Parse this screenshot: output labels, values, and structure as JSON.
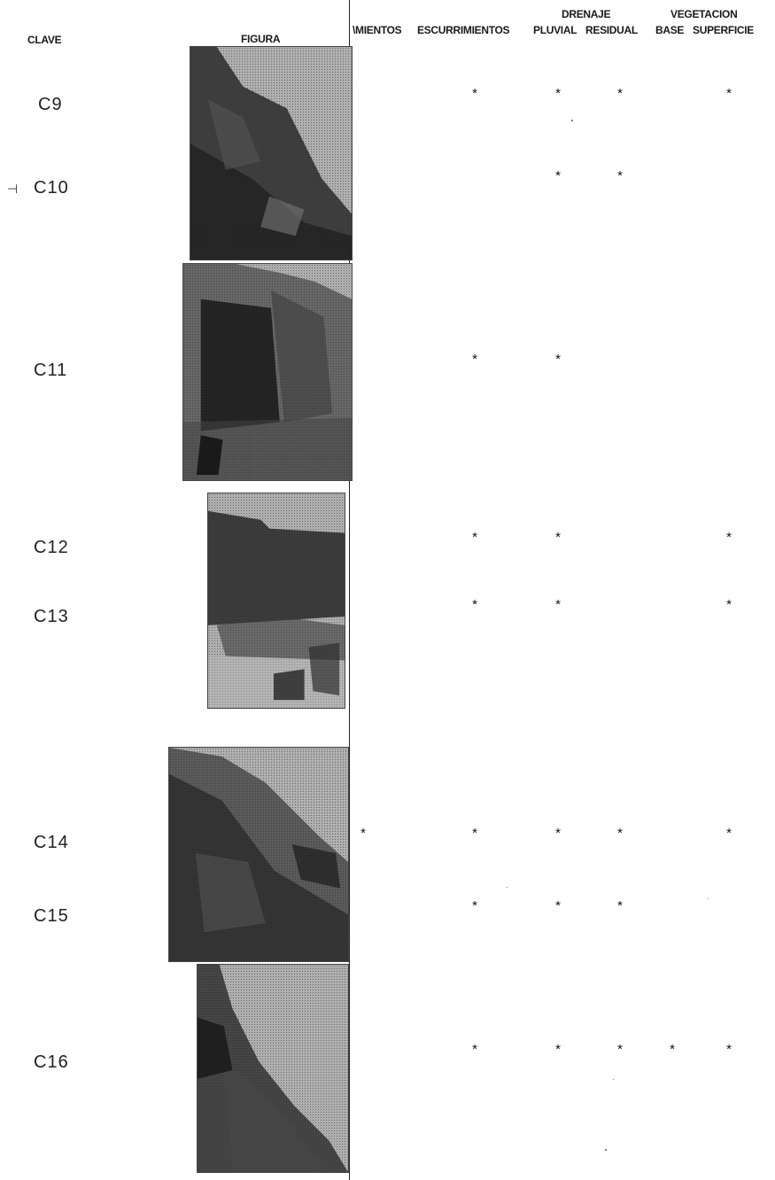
{
  "headers": {
    "clave": "CLAVE",
    "figura": "FIGURA",
    "col_mientos": "\\MIENTOS",
    "col_escurrimientos": "ESCURRIMIENTOS",
    "col_pluvial": "PLUVIAL",
    "col_residual": "RESIDUAL",
    "col_base": "BASE",
    "col_superficie": "SUPERFICIE",
    "group_drenaje": "DRENAJE",
    "group_vegetacion": "VEGETACION"
  },
  "margin_mark": "⊣",
  "mark_symbol": "*",
  "rows": [
    {
      "key": "C9",
      "mientos": false,
      "escurrimientos": true,
      "pluvial": true,
      "residual": true,
      "base": false,
      "superficie": true
    },
    {
      "key": "C10",
      "mientos": false,
      "escurrimientos": false,
      "pluvial": true,
      "residual": true,
      "base": false,
      "superficie": false
    },
    {
      "key": "C11",
      "mientos": false,
      "escurrimientos": true,
      "pluvial": true,
      "residual": false,
      "base": false,
      "superficie": false
    },
    {
      "key": "C12",
      "mientos": false,
      "escurrimientos": true,
      "pluvial": true,
      "residual": false,
      "base": false,
      "superficie": true
    },
    {
      "key": "C13",
      "mientos": false,
      "escurrimientos": true,
      "pluvial": true,
      "residual": false,
      "base": false,
      "superficie": true
    },
    {
      "key": "C14",
      "mientos": true,
      "escurrimientos": true,
      "pluvial": true,
      "residual": true,
      "base": false,
      "superficie": true
    },
    {
      "key": "C15",
      "mientos": false,
      "escurrimientos": true,
      "pluvial": true,
      "residual": true,
      "base": false,
      "superficie": false
    },
    {
      "key": "C16",
      "mientos": false,
      "escurrimientos": true,
      "pluvial": true,
      "residual": true,
      "base": true,
      "superficie": true
    }
  ]
}
